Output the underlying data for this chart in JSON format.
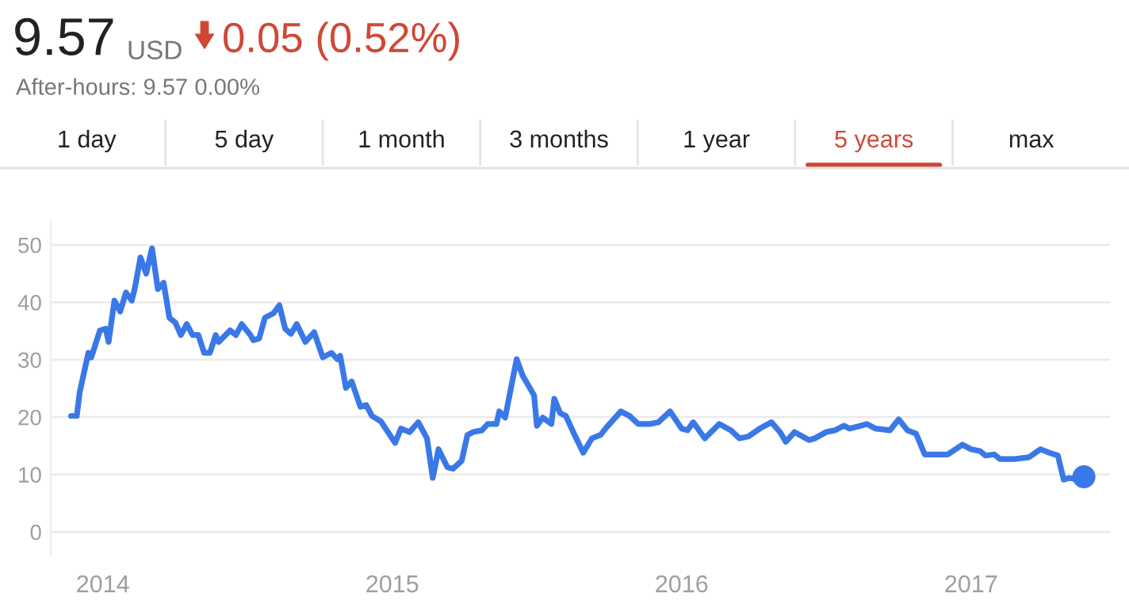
{
  "chart_data": {
    "type": "line",
    "annotations": [
      "9.57",
      "USD",
      "0.05 (0.52%)",
      "After-hours: 9.57 0.00%",
      "1 day",
      "5 day",
      "1 month",
      "3 months",
      "1 year",
      "5 years",
      "max"
    ],
    "series": [
      {
        "color": "#3b78e7",
        "x": [
          2013.89,
          2013.91,
          2013.92,
          2013.95,
          2013.96,
          2013.99,
          2014.01,
          2014.02,
          2014.04,
          2014.06,
          2014.08,
          2014.1,
          2014.11,
          2014.13,
          2014.15,
          2014.17,
          2014.19,
          2014.21,
          2014.23,
          2014.25,
          2014.27,
          2014.29,
          2014.31,
          2014.33,
          2014.35,
          2014.37,
          2014.39,
          2014.4,
          2014.44,
          2014.46,
          2014.48,
          2014.51,
          2014.52,
          2014.54,
          2014.56,
          2014.59,
          2014.61,
          2014.63,
          2014.65,
          2014.67,
          2014.7,
          2014.73,
          2014.76,
          2014.79,
          2014.81,
          2014.82,
          2014.84,
          2014.86,
          2014.89,
          2014.91,
          2014.93,
          2014.96,
          2015.01,
          2015.03,
          2015.06,
          2015.09,
          2015.12,
          2015.14,
          2015.16,
          2015.19,
          2015.21,
          2015.24,
          2015.26,
          2015.28,
          2015.31,
          2015.33,
          2015.36,
          2015.37,
          2015.39,
          2015.43,
          2015.45,
          2015.49,
          2015.5,
          2015.52,
          2015.55,
          2015.56,
          2015.58,
          2015.6,
          2015.63,
          2015.66,
          2015.69,
          2015.72,
          2015.74,
          2015.79,
          2015.82,
          2015.85,
          2015.89,
          2015.92,
          2015.96,
          2016.0,
          2016.02,
          2016.04,
          2016.08,
          2016.13,
          2016.17,
          2016.2,
          2016.23,
          2016.27,
          2016.31,
          2016.34,
          2016.36,
          2016.39,
          2016.44,
          2016.46,
          2016.5,
          2016.53,
          2016.56,
          2016.58,
          2016.62,
          2016.64,
          2016.67,
          2016.72,
          2016.75,
          2016.78,
          2016.81,
          2016.84,
          2016.87,
          2016.92,
          2016.97,
          2017.0,
          2017.03,
          2017.05,
          2017.08,
          2017.1,
          2017.15,
          2017.2,
          2017.24,
          2017.27,
          2017.3,
          2017.32,
          2017.34,
          2017.37,
          2017.39
        ],
        "values": [
          20.2,
          20.2,
          24.3,
          31.2,
          30.4,
          35.1,
          35.4,
          33.1,
          40.3,
          38.4,
          41.7,
          40.3,
          42.3,
          47.8,
          45,
          49.4,
          42.3,
          43.4,
          37.3,
          36.5,
          34.3,
          36.2,
          34.3,
          34.3,
          31.2,
          31.2,
          34.3,
          33.1,
          35.1,
          34.3,
          36.2,
          34.3,
          33.4,
          33.7,
          37.3,
          38.1,
          39.5,
          35.4,
          34.5,
          36.2,
          33.1,
          34.8,
          30.4,
          31.2,
          30.1,
          30.7,
          25.1,
          26.2,
          21.8,
          22.1,
          20.2,
          19.3,
          15.5,
          18,
          17.4,
          19.1,
          16.3,
          9.4,
          14.4,
          11.3,
          11,
          12.4,
          16.9,
          17.4,
          17.7,
          18.8,
          18.8,
          21,
          19.9,
          30.1,
          27.3,
          23.8,
          18.5,
          19.9,
          18.8,
          23.2,
          20.7,
          20.2,
          16.9,
          13.8,
          16.3,
          16.9,
          18.2,
          21,
          20.2,
          18.8,
          18.8,
          19.1,
          21,
          18,
          17.7,
          19.1,
          16.3,
          18.8,
          17.7,
          16.3,
          16.6,
          18,
          19.1,
          17.4,
          15.7,
          17.4,
          16,
          16.3,
          17.4,
          17.7,
          18.5,
          18,
          18.5,
          18.8,
          18,
          17.7,
          19.6,
          17.7,
          17.1,
          13.5,
          13.5,
          13.5,
          15.2,
          14.4,
          14.1,
          13.3,
          13.5,
          12.7,
          12.7,
          13,
          14.4,
          13.8,
          13.3,
          9.1,
          9.4,
          9.1,
          9.6
        ]
      },
      {
        "type": "scatter",
        "marker": "circle",
        "color": "#3b78e7",
        "x": [
          2017.39
        ],
        "values": [
          9.6
        ]
      }
    ],
    "xlim": [
      2013.82,
      2017.48
    ],
    "xticks": [
      2014,
      2015,
      2016,
      2017
    ],
    "ylim": [
      -4,
      54
    ],
    "yticks": [
      0,
      10,
      20,
      30,
      40,
      50
    ],
    "grid": "y",
    "marker": "none",
    "line_style": "solid"
  }
}
